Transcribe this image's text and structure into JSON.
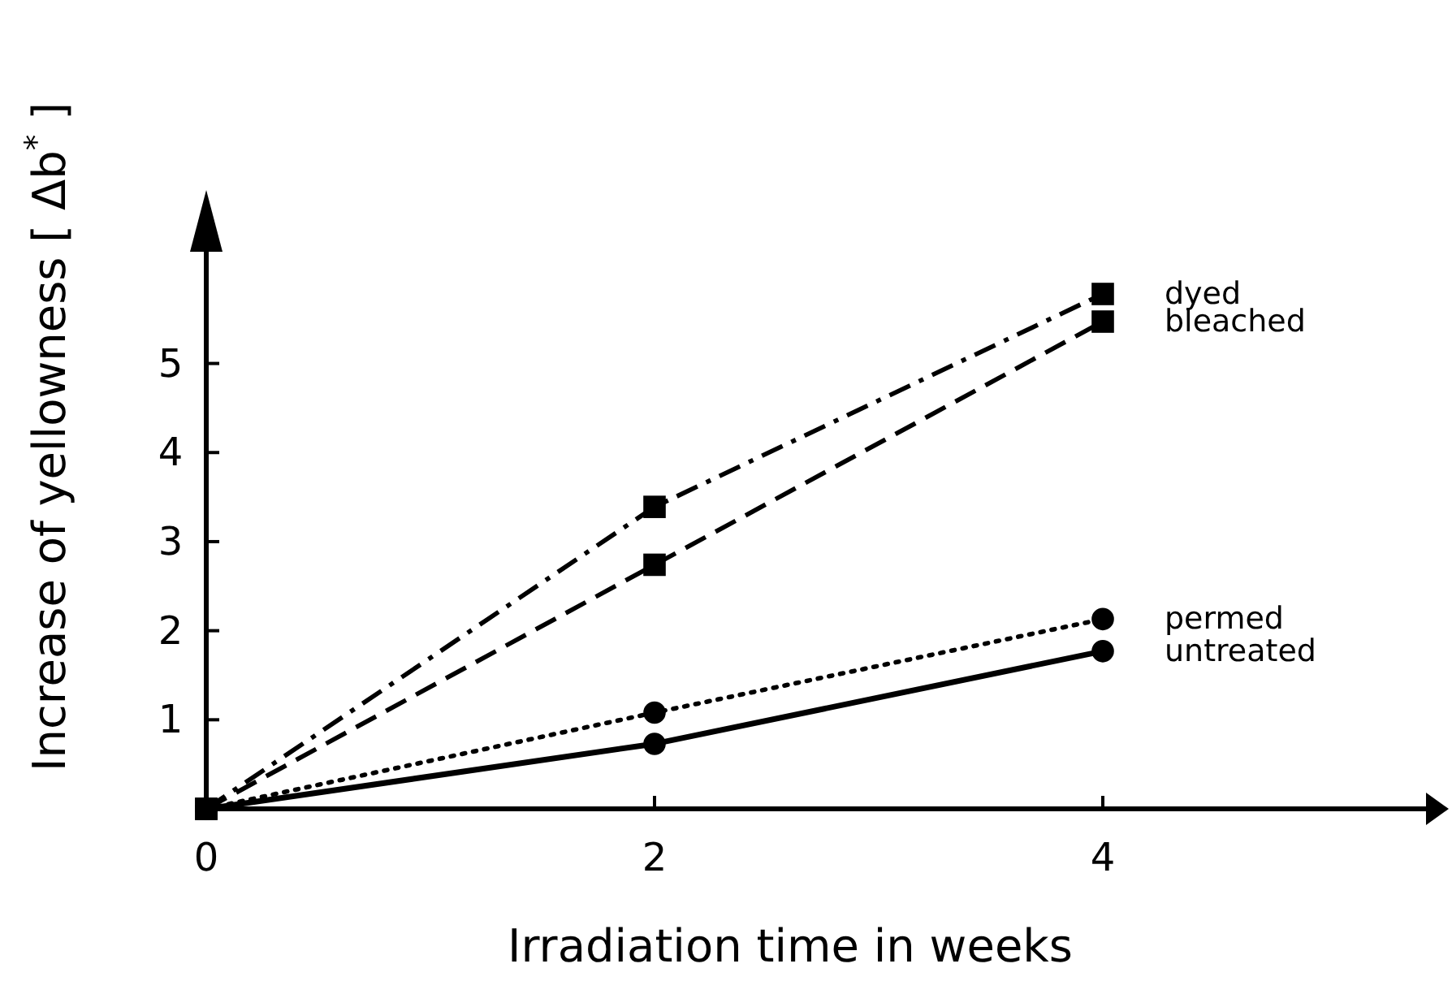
{
  "chart_data": {
    "type": "line",
    "xlabel": "Irradiation time in weeks",
    "ylabel": "Increase of yellowness [ Δb$^{*}$ ]",
    "x": [
      0,
      2,
      4
    ],
    "xlim": [
      0,
      5.5
    ],
    "ylim": [
      0,
      6.4
    ],
    "xticks": [
      0,
      2,
      4
    ],
    "yticks": [
      1,
      2,
      3,
      4,
      5
    ],
    "grid": false,
    "series": [
      {
        "name": "dyed",
        "color": "#000000",
        "values": [
          0,
          3.39,
          5.78
        ],
        "marker": "square",
        "line_style": "dashdot"
      },
      {
        "name": "bleached",
        "color": "#000000",
        "values": [
          0,
          2.74,
          5.47
        ],
        "marker": "square",
        "line_style": "dashed"
      },
      {
        "name": "permed",
        "color": "#000000",
        "values": [
          0,
          1.08,
          2.13
        ],
        "marker": "circle",
        "line_style": "dotted"
      },
      {
        "name": "untreated",
        "color": "#000000",
        "values": [
          0,
          0.73,
          1.77
        ],
        "marker": "circle",
        "line_style": "solid"
      }
    ]
  }
}
